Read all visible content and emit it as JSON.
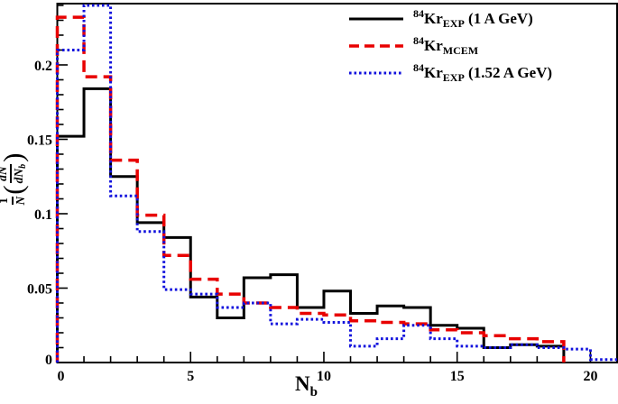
{
  "figure": {
    "background": "#ffffff",
    "frame_color": "#000000"
  },
  "labels": {
    "x_label_main": "N",
    "x_label_sub": "b",
    "y_frac1_num": "1",
    "y_frac1_den": "N",
    "y_frac2_num": "dN",
    "y_frac2_den": "dN",
    "y_frac2_den_sub": "b",
    "paren_open": "(",
    "paren_close": ")"
  },
  "axes": {
    "x": {
      "major": [
        0,
        5,
        10,
        15,
        20
      ],
      "labels": [
        "0",
        "5",
        "10",
        "15",
        "20"
      ],
      "minor_step": 1
    },
    "y": {
      "major": [
        0,
        0.05,
        0.1,
        0.15,
        0.2
      ],
      "labels": [
        "0",
        "0.05",
        "0.1",
        "0.15",
        "0.2"
      ],
      "minor_step": 0.01
    }
  },
  "chart_data": {
    "type": "bar",
    "subtype": "step-histogram",
    "title": "",
    "xlabel": "N_b",
    "ylabel": "(1/N)(dN/dN_b)",
    "xlim": [
      0,
      21
    ],
    "ylim": [
      0,
      0.2412
    ],
    "grid": false,
    "legend_position": "top-right",
    "bin_width": 1,
    "bin_start": 0,
    "categories": [
      0,
      1,
      2,
      3,
      4,
      5,
      6,
      7,
      8,
      9,
      10,
      11,
      12,
      13,
      14,
      15,
      16,
      17,
      18,
      19,
      20
    ],
    "series": [
      {
        "name": "84Kr_EXP (1 A GeV)",
        "label_parts": {
          "sup": "84",
          "base": "Kr",
          "sub": "EXP",
          "suffix": " (1 A GeV)"
        },
        "color": "#000000",
        "line_style": "solid",
        "values": [
          0.152,
          0.184,
          0.125,
          0.094,
          0.084,
          0.044,
          0.03,
          0.057,
          0.059,
          0.037,
          0.048,
          0.033,
          0.038,
          0.037,
          0.025,
          0.023,
          0.01,
          0.012,
          0.011,
          0,
          0
        ]
      },
      {
        "name": "84Kr_MCEM",
        "label_parts": {
          "sup": "84",
          "base": "Kr",
          "sub": "MCEM",
          "suffix": ""
        },
        "color": "#e80000",
        "line_style": "dashed",
        "values": [
          0.232,
          0.192,
          0.136,
          0.099,
          0.072,
          0.056,
          0.046,
          0.04,
          0.037,
          0.033,
          0.032,
          0.028,
          0.027,
          0.026,
          0.022,
          0.02,
          0.018,
          0.016,
          0.014,
          0,
          0
        ]
      },
      {
        "name": "84Kr_EXP (1.52 A GeV)",
        "label_parts": {
          "sup": "84",
          "base": "Kr",
          "sub": "EXP",
          "suffix": " (1.52 A GeV)"
        },
        "color": "#1111dd",
        "line_style": "dotted",
        "values": [
          0.21,
          0.24,
          0.112,
          0.088,
          0.049,
          0.046,
          0.037,
          0.04,
          0.026,
          0.029,
          0.027,
          0.011,
          0.016,
          0.025,
          0.016,
          0.011,
          0.01,
          0.012,
          0.01,
          0.009,
          0.002
        ]
      }
    ]
  }
}
